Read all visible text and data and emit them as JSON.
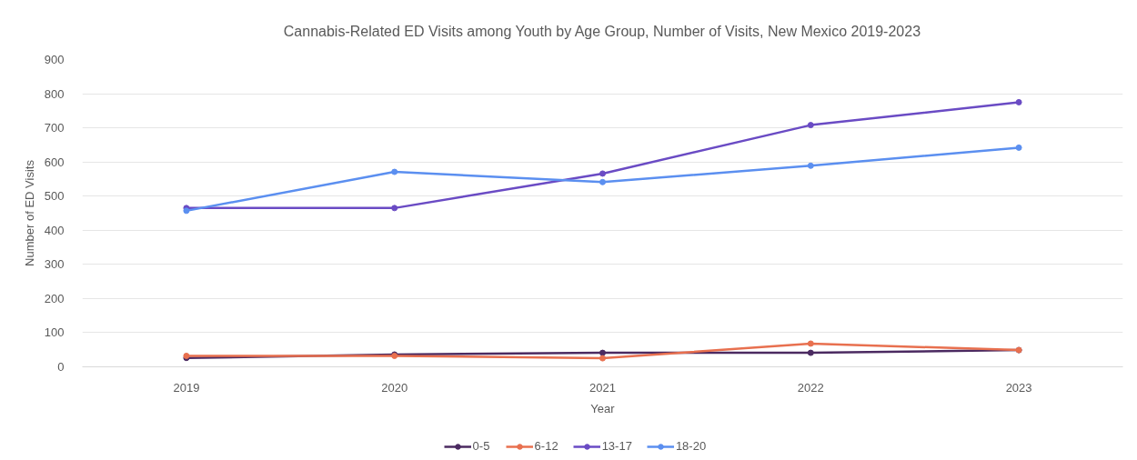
{
  "chart_data": {
    "type": "line",
    "title": "Cannabis-Related ED Visits among Youth by Age Group, Number of Visits, New Mexico 2019-2023",
    "xlabel": "Year",
    "ylabel": "Number of ED Visits",
    "categories": [
      "2019",
      "2020",
      "2021",
      "2022",
      "2023"
    ],
    "series": [
      {
        "name": "0-5",
        "color": "#4b2a61",
        "values": [
          26,
          36,
          41,
          41,
          49
        ]
      },
      {
        "name": "6-12",
        "color": "#e8704f",
        "values": [
          32,
          32,
          25,
          68,
          49
        ]
      },
      {
        "name": "13-17",
        "color": "#6a4bc4",
        "values": [
          465,
          465,
          566,
          708,
          775
        ]
      },
      {
        "name": "18-20",
        "color": "#5b8ff0",
        "values": [
          457,
          571,
          541,
          589,
          642
        ]
      }
    ],
    "ylim": [
      0,
      900
    ],
    "yticks": [
      0,
      100,
      200,
      300,
      400,
      500,
      600,
      700,
      800,
      900
    ],
    "grid": "y",
    "legend": "bottom",
    "marker": "circle",
    "line_style": "solid"
  }
}
